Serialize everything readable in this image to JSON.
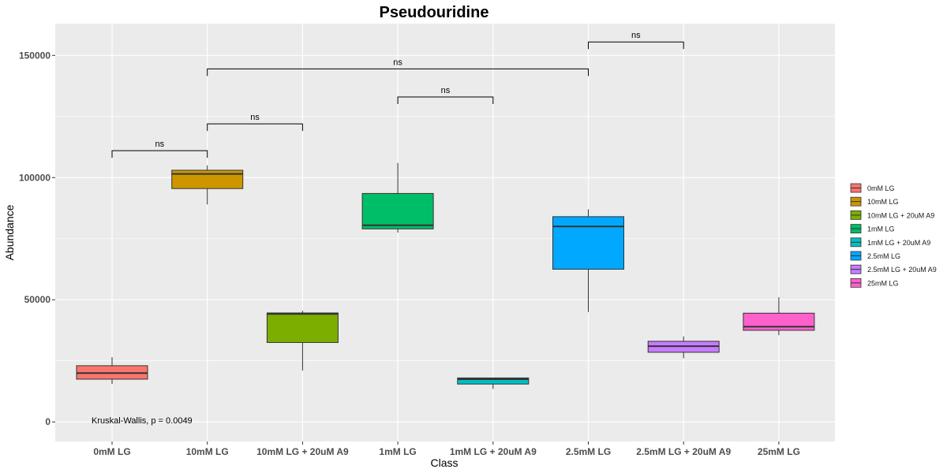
{
  "chart_data": {
    "type": "boxplot",
    "title": "Pseudouridine",
    "xlabel": "Class",
    "ylabel": "Abundance",
    "ylim": [
      -8000,
      163000
    ],
    "yticks": [
      0,
      50000,
      100000,
      150000
    ],
    "ytick_labels": [
      "0",
      "50000",
      "100000",
      "150000"
    ],
    "grid": true,
    "legend_position": "right",
    "categories": [
      "0mM LG",
      "10mM LG",
      "10mM LG + 20uM A9",
      "1mM LG",
      "1mM LG + 20uM A9",
      "2.5mM LG",
      "2.5mM LG + 20uM A9",
      "25mM LG"
    ],
    "boxes": [
      {
        "label": "0mM LG",
        "color": "#F8766D",
        "min": 15500,
        "q1": 17500,
        "median": 20000,
        "q3": 23000,
        "max": 26500
      },
      {
        "label": "10mM LG",
        "color": "#CD9600",
        "min": 89000,
        "q1": 95500,
        "median": 101500,
        "q3": 103000,
        "max": 105000
      },
      {
        "label": "10mM LG + 20uM A9",
        "color": "#7CAE00",
        "min": 21000,
        "q1": 32500,
        "median": 44200,
        "q3": 44600,
        "max": 45500
      },
      {
        "label": "1mM LG",
        "color": "#00BE67",
        "min": 77500,
        "q1": 79000,
        "median": 80500,
        "q3": 93500,
        "max": 106000
      },
      {
        "label": "1mM LG + 20uM A9",
        "color": "#00BFC4",
        "min": 13500,
        "q1": 15500,
        "median": 17500,
        "q3": 18000,
        "max": 18000
      },
      {
        "label": "2.5mM LG",
        "color": "#00A9FF",
        "min": 45000,
        "q1": 62500,
        "median": 80000,
        "q3": 84000,
        "max": 87000
      },
      {
        "label": "2.5mM LG + 20uM A9",
        "color": "#C77CFF",
        "min": 26000,
        "q1": 28500,
        "median": 31000,
        "q3": 33000,
        "max": 35000
      },
      {
        "label": "25mM LG",
        "color": "#FF61CC",
        "min": 35500,
        "q1": 37500,
        "median": 39000,
        "q3": 44500,
        "max": 51000
      }
    ],
    "comparisons": [
      {
        "from": 0,
        "to": 1,
        "y": 111000,
        "label": "ns"
      },
      {
        "from": 1,
        "to": 2,
        "y": 122000,
        "label": "ns"
      },
      {
        "from": 3,
        "to": 4,
        "y": 133000,
        "label": "ns"
      },
      {
        "from": 1,
        "to": 5,
        "y": 144500,
        "label": "ns"
      },
      {
        "from": 5,
        "to": 6,
        "y": 155500,
        "label": "ns"
      }
    ],
    "annotation": {
      "text": "Kruskal-Wallis, p = 0.0049"
    },
    "legend": [
      {
        "label": "0mM LG",
        "color": "#F8766D"
      },
      {
        "label": "10mM LG",
        "color": "#CD9600"
      },
      {
        "label": "10mM LG + 20uM A9",
        "color": "#7CAE00"
      },
      {
        "label": "1mM LG",
        "color": "#00BE67"
      },
      {
        "label": "1mM LG + 20uM A9",
        "color": "#00BFC4"
      },
      {
        "label": "2.5mM LG",
        "color": "#00A9FF"
      },
      {
        "label": "2.5mM LG + 20uM A9",
        "color": "#C77CFF"
      },
      {
        "label": "25mM LG",
        "color": "#FF61CC"
      }
    ]
  }
}
